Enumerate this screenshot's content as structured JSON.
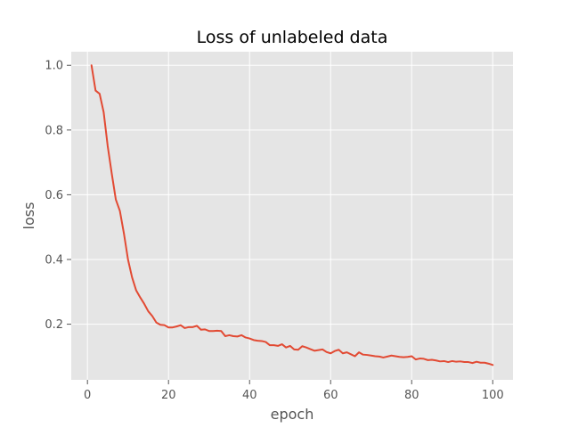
{
  "chart_data": {
    "type": "line",
    "title": "Loss of unlabeled data",
    "xlabel": "epoch",
    "ylabel": "loss",
    "xlim": [
      -4,
      105
    ],
    "ylim": [
      0.028,
      1.042
    ],
    "xticks": [
      0,
      20,
      40,
      60,
      80,
      100
    ],
    "yticks": [
      0.2,
      0.4,
      0.6,
      0.8,
      1.0
    ],
    "xtick_labels": [
      "0",
      "20",
      "40",
      "60",
      "80",
      "100"
    ],
    "ytick_labels": [
      "0.2",
      "0.4",
      "0.6",
      "0.8",
      "1.0"
    ],
    "grid": true,
    "background": "#e5e5e5",
    "grid_color": "#ffffff",
    "line_color": "#e24a33",
    "series": [
      {
        "x": [
          1,
          2,
          3,
          4,
          5,
          6,
          7,
          8,
          9,
          10,
          11,
          12,
          13,
          14,
          15,
          16,
          17,
          18,
          19,
          20,
          21,
          22,
          23,
          24,
          25,
          26,
          27,
          28,
          29,
          30,
          31,
          32,
          33,
          34,
          35,
          36,
          37,
          38,
          39,
          40,
          41,
          42,
          43,
          44,
          45,
          46,
          47,
          48,
          49,
          50,
          51,
          52,
          53,
          54,
          55,
          56,
          57,
          58,
          59,
          60,
          61,
          62,
          63,
          64,
          65,
          66,
          67,
          68,
          69,
          70,
          71,
          72,
          73,
          74,
          75,
          76,
          77,
          78,
          79,
          80,
          81,
          82,
          83,
          84,
          85,
          86,
          87,
          88,
          89,
          90,
          91,
          92,
          93,
          94,
          95,
          96,
          97,
          98,
          99,
          100
        ],
        "values": [
          1.0,
          0.922,
          0.912,
          0.855,
          0.75,
          0.665,
          0.585,
          0.55,
          0.48,
          0.4,
          0.345,
          0.305,
          0.283,
          0.263,
          0.24,
          0.225,
          0.205,
          0.198,
          0.197,
          0.19,
          0.19,
          0.193,
          0.197,
          0.188,
          0.191,
          0.191,
          0.195,
          0.183,
          0.184,
          0.179,
          0.179,
          0.18,
          0.179,
          0.163,
          0.166,
          0.163,
          0.162,
          0.166,
          0.159,
          0.156,
          0.151,
          0.149,
          0.148,
          0.145,
          0.135,
          0.135,
          0.133,
          0.138,
          0.128,
          0.133,
          0.122,
          0.121,
          0.132,
          0.128,
          0.123,
          0.118,
          0.12,
          0.122,
          0.114,
          0.11,
          0.117,
          0.121,
          0.11,
          0.113,
          0.107,
          0.101,
          0.113,
          0.106,
          0.105,
          0.103,
          0.101,
          0.1,
          0.097,
          0.1,
          0.103,
          0.101,
          0.099,
          0.098,
          0.099,
          0.101,
          0.091,
          0.094,
          0.093,
          0.089,
          0.09,
          0.088,
          0.085,
          0.086,
          0.083,
          0.086,
          0.084,
          0.085,
          0.083,
          0.083,
          0.08,
          0.084,
          0.081,
          0.081,
          0.078,
          0.074
        ]
      }
    ]
  }
}
